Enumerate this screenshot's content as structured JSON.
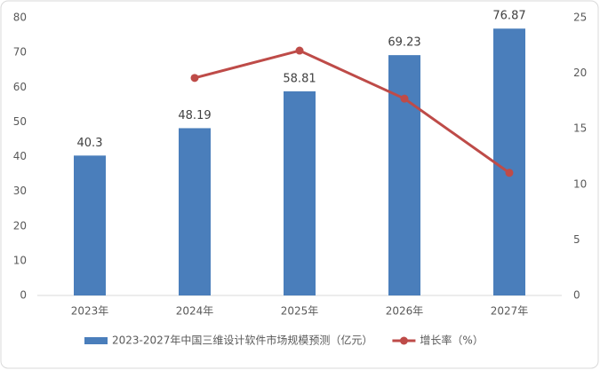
{
  "chart_data": {
    "type": "combo",
    "categories": [
      "2023年",
      "2024年",
      "2025年",
      "2026年",
      "2027年"
    ],
    "series": [
      {
        "name": "2023-2027年中国三维设计软件市场规模预测（亿元）",
        "type": "bar",
        "color": "#4a7ebb",
        "values": [
          40.3,
          48.19,
          58.81,
          69.23,
          76.87
        ]
      },
      {
        "name": "增长率（%）",
        "type": "line",
        "axis": "y2",
        "color": "#be4b48",
        "values": [
          null,
          19.58,
          22.04,
          17.72,
          11.04
        ]
      }
    ],
    "ylim": [
      0,
      80
    ],
    "yticks": [
      0,
      10,
      20,
      30,
      40,
      50,
      60,
      70,
      80
    ],
    "y2lim": [
      0,
      25
    ],
    "y2ticks": [
      0,
      5,
      10,
      15,
      20,
      25
    ],
    "grid": false,
    "legend": "bottom"
  }
}
